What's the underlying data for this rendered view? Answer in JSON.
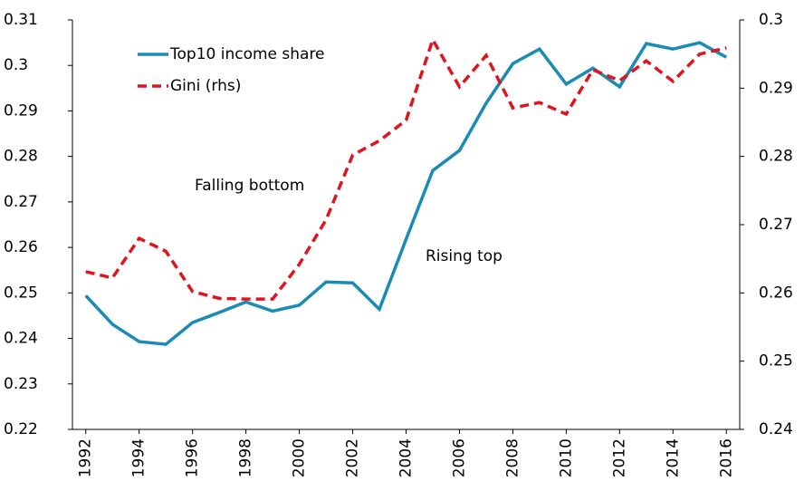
{
  "chart_data": {
    "type": "line",
    "x": [
      1992,
      1993,
      1994,
      1995,
      1996,
      1997,
      1998,
      1999,
      2000,
      2001,
      2002,
      2003,
      2004,
      2005,
      2006,
      2007,
      2008,
      2009,
      2010,
      2011,
      2012,
      2013,
      2014,
      2015,
      2016
    ],
    "xlim": [
      1991.5,
      2016.5
    ],
    "xticks": [
      1992,
      1994,
      1996,
      1998,
      2000,
      2002,
      2004,
      2006,
      2008,
      2010,
      2012,
      2014,
      2016
    ],
    "ylim": [
      0.22,
      0.31
    ],
    "yticks": [
      0.22,
      0.23,
      0.24,
      0.25,
      0.26,
      0.27,
      0.28,
      0.29,
      0.3,
      0.31
    ],
    "y2lim": [
      0.24,
      0.3
    ],
    "y2ticks": [
      0.24,
      0.25,
      0.26,
      0.27,
      0.28,
      0.29,
      0.3
    ],
    "series": [
      {
        "name": "Top10 income share",
        "color": "#1a8bb5",
        "dash": false,
        "values": [
          0.2494,
          0.2431,
          0.2393,
          0.2387,
          0.2435,
          0.2457,
          0.248,
          0.246,
          0.2473,
          0.2524,
          0.2522,
          0.2464,
          0.2618,
          0.2769,
          0.2813,
          0.2917,
          0.3004,
          0.3036,
          0.2959,
          0.2994,
          0.2953,
          0.3048,
          0.3036,
          0.305,
          0.3018
        ]
      },
      {
        "name": "Gini (rhs)",
        "color": "#e0141e",
        "dash": true,
        "axis": "y2",
        "values": [
          0.2631,
          0.2622,
          0.268,
          0.2661,
          0.2602,
          0.2592,
          0.2591,
          0.2591,
          0.2642,
          0.2707,
          0.2802,
          0.2823,
          0.2853,
          0.2971,
          0.2902,
          0.2948,
          0.2871,
          0.2879,
          0.2862,
          0.2927,
          0.2911,
          0.294,
          0.291,
          0.295,
          0.2959
        ]
      }
    ],
    "annotations": [
      {
        "text": "Falling bottom",
        "color": "#e0141e"
      },
      {
        "text": "Rising top",
        "color": "#1a8bb5"
      }
    ]
  }
}
